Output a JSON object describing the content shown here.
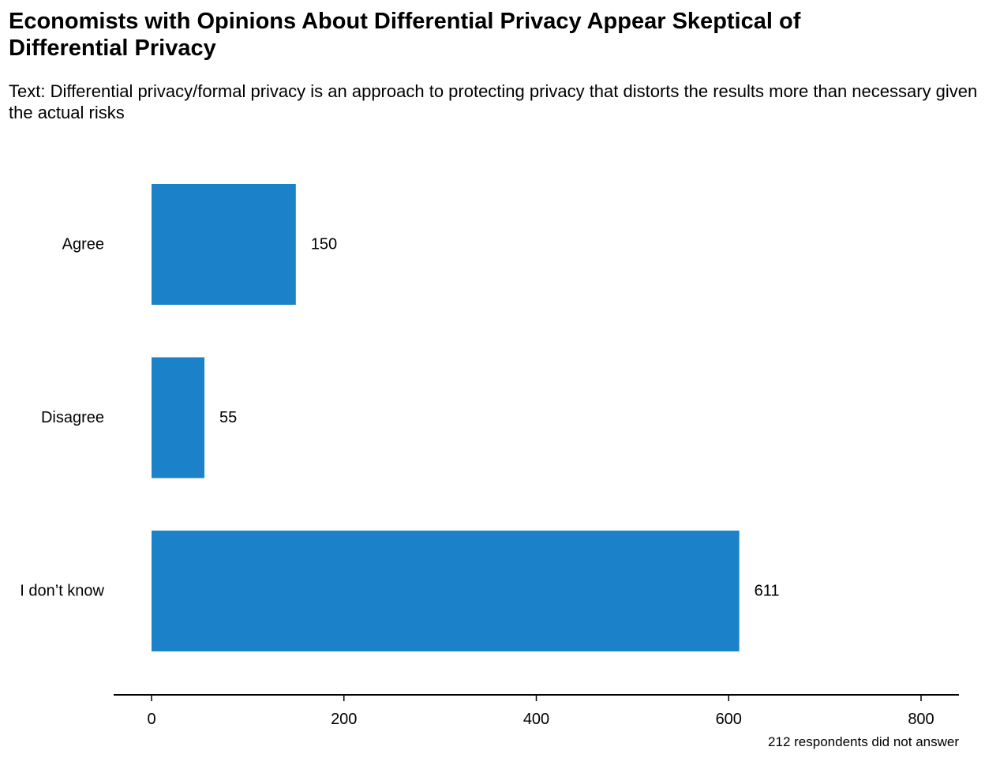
{
  "chart_data": {
    "type": "bar",
    "orientation": "horizontal",
    "title": "Economists with Opinions About Differential Privacy Appear Skeptical of Differential Privacy",
    "subtitle": "Text: Differential privacy/formal privacy is an approach to protecting privacy that distorts the results more than necessary given the actual risks",
    "categories": [
      "Agree",
      "Disagree",
      "I don’t know"
    ],
    "values": [
      150,
      55,
      611
    ],
    "value_labels": [
      "150",
      "55",
      "611"
    ],
    "xlim": [
      0,
      800
    ],
    "x_ticks": [
      0,
      200,
      400,
      600,
      800
    ],
    "x_tick_labels": [
      "0",
      "200",
      "400",
      "600",
      "800"
    ],
    "xlabel": "",
    "ylabel": "",
    "grid": false,
    "bar_color": "#1b82c9",
    "note": "212 respondents did not answer"
  }
}
